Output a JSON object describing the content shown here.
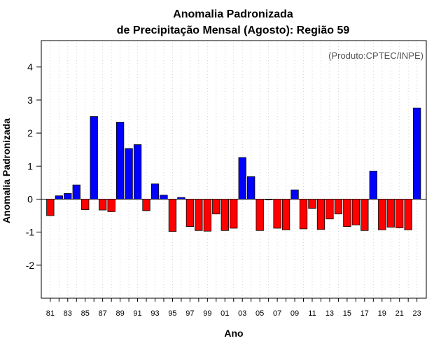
{
  "chart_data": {
    "type": "bar",
    "title": "Anomalia Padronizada",
    "subtitle": "de Precipitação Mensal (Agosto): Região 59",
    "credit": "(Produto:CPTEC/INPE)",
    "xlabel": "Ano",
    "ylabel": "Anomalia Padronizada",
    "ylim": [
      -3,
      4.8
    ],
    "yticks": [
      -2,
      -1,
      0,
      1,
      2,
      3,
      4
    ],
    "grid": true,
    "categories": [
      "81",
      "82",
      "83",
      "84",
      "85",
      "86",
      "87",
      "88",
      "89",
      "90",
      "91",
      "92",
      "93",
      "94",
      "95",
      "96",
      "97",
      "98",
      "99",
      "00",
      "01",
      "02",
      "03",
      "04",
      "05",
      "06",
      "07",
      "08",
      "09",
      "10",
      "11",
      "12",
      "13",
      "14",
      "15",
      "16",
      "17",
      "18",
      "19",
      "20",
      "21",
      "22",
      "23"
    ],
    "tick_labels": [
      "81",
      "83",
      "85",
      "87",
      "89",
      "91",
      "93",
      "95",
      "97",
      "99",
      "01",
      "03",
      "05",
      "07",
      "09",
      "11",
      "13",
      "15",
      "17",
      "19",
      "21",
      "23"
    ],
    "values": [
      -0.5,
      0.1,
      0.17,
      0.43,
      -0.32,
      2.5,
      -0.33,
      -0.38,
      2.33,
      1.53,
      1.65,
      -0.35,
      0.46,
      0.12,
      -0.98,
      0.05,
      -0.83,
      -0.95,
      -0.97,
      -0.45,
      -0.95,
      -0.88,
      1.26,
      0.68,
      -0.95,
      -0.02,
      -0.88,
      -0.93,
      0.28,
      -0.9,
      -0.28,
      -0.92,
      -0.6,
      -0.45,
      -0.83,
      -0.78,
      -0.95,
      0.85,
      -0.93,
      -0.85,
      -0.87,
      -0.93,
      2.76
    ],
    "positive_color": "#0000ff",
    "negative_color": "#ff0000"
  }
}
